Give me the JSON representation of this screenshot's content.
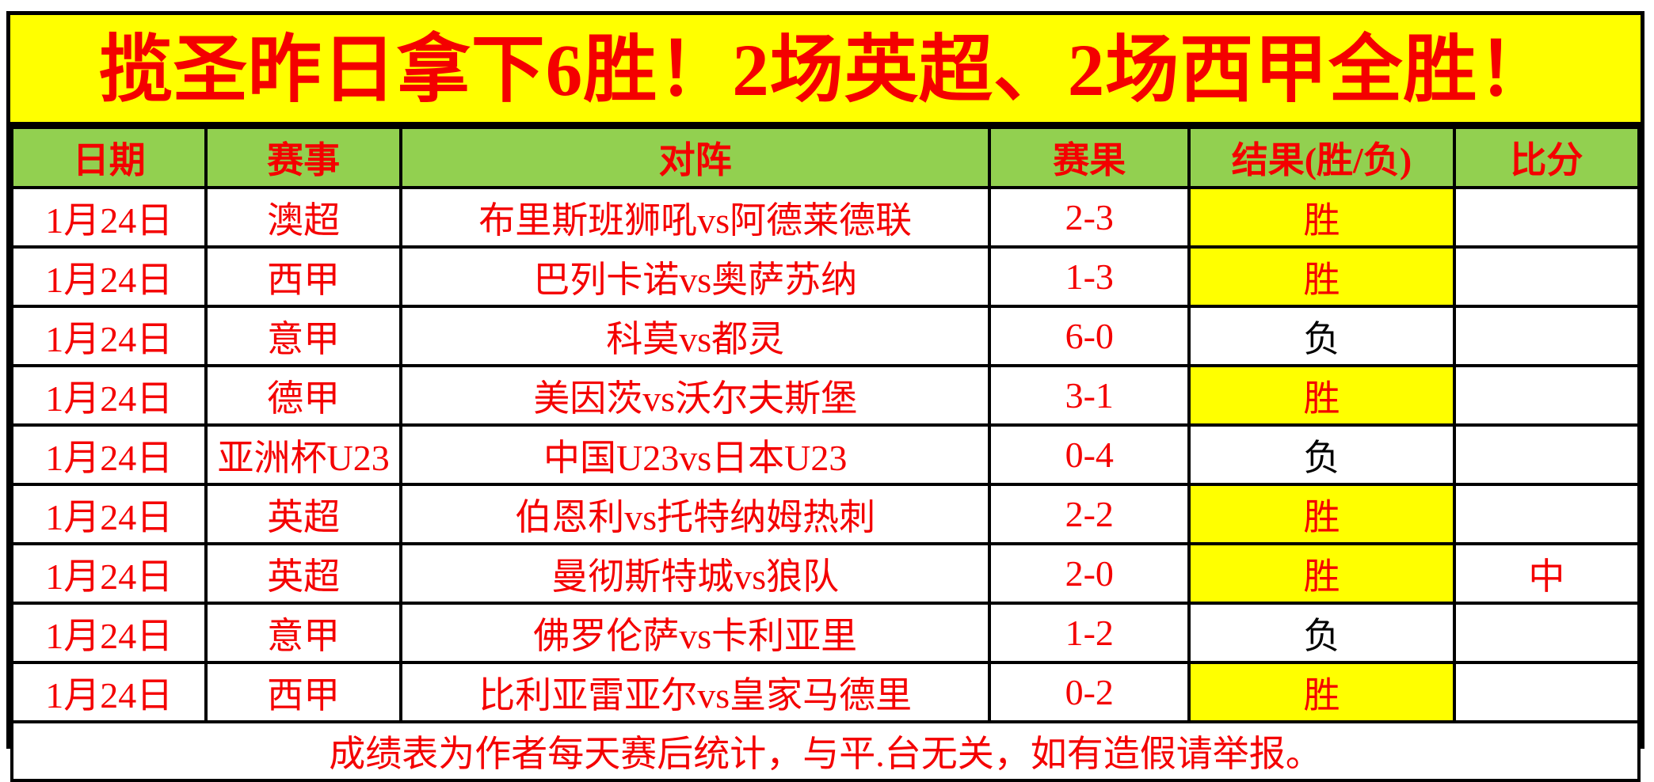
{
  "banner": {
    "title": "揽圣昨日拿下6胜！2场英超、2场西甲全胜！"
  },
  "table": {
    "headers": {
      "date": "日期",
      "league": "赛事",
      "match": "对阵",
      "score": "赛果",
      "result": "结果(胜/负)",
      "odds": "比分"
    },
    "rows": [
      {
        "date": "1月24日",
        "league": "澳超",
        "match": "布里斯班狮吼vs阿德莱德联",
        "score": "2-3",
        "result": "胜",
        "result_type": "win",
        "odds": ""
      },
      {
        "date": "1月24日",
        "league": "西甲",
        "match": "巴列卡诺vs奥萨苏纳",
        "score": "1-3",
        "result": "胜",
        "result_type": "win",
        "odds": ""
      },
      {
        "date": "1月24日",
        "league": "意甲",
        "match": "科莫vs都灵",
        "score": "6-0",
        "result": "负",
        "result_type": "loss",
        "odds": ""
      },
      {
        "date": "1月24日",
        "league": "德甲",
        "match": "美因茨vs沃尔夫斯堡",
        "score": "3-1",
        "result": "胜",
        "result_type": "win",
        "odds": ""
      },
      {
        "date": "1月24日",
        "league": "亚洲杯U23",
        "match": "中国U23vs日本U23",
        "score": "0-4",
        "result": "负",
        "result_type": "loss",
        "odds": ""
      },
      {
        "date": "1月24日",
        "league": "英超",
        "match": "伯恩利vs托特纳姆热刺",
        "score": "2-2",
        "result": "胜",
        "result_type": "win",
        "odds": ""
      },
      {
        "date": "1月24日",
        "league": "英超",
        "match": "曼彻斯特城vs狼队",
        "score": "2-0",
        "result": "胜",
        "result_type": "win",
        "odds": "中"
      },
      {
        "date": "1月24日",
        "league": "意甲",
        "match": "佛罗伦萨vs卡利亚里",
        "score": "1-2",
        "result": "负",
        "result_type": "loss",
        "odds": ""
      },
      {
        "date": "1月24日",
        "league": "西甲",
        "match": "比利亚雷亚尔vs皇家马德里",
        "score": "0-2",
        "result": "胜",
        "result_type": "win",
        "odds": ""
      }
    ],
    "footer": "成绩表为作者每天赛后统计，与平.台无关，如有造假请举报。"
  },
  "colors": {
    "banner_bg": "#FFFF00",
    "header_bg": "#92D050",
    "win_bg": "#FFFF00",
    "text_red": "#F40000",
    "loss_text": "#000000",
    "border": "#000000"
  }
}
